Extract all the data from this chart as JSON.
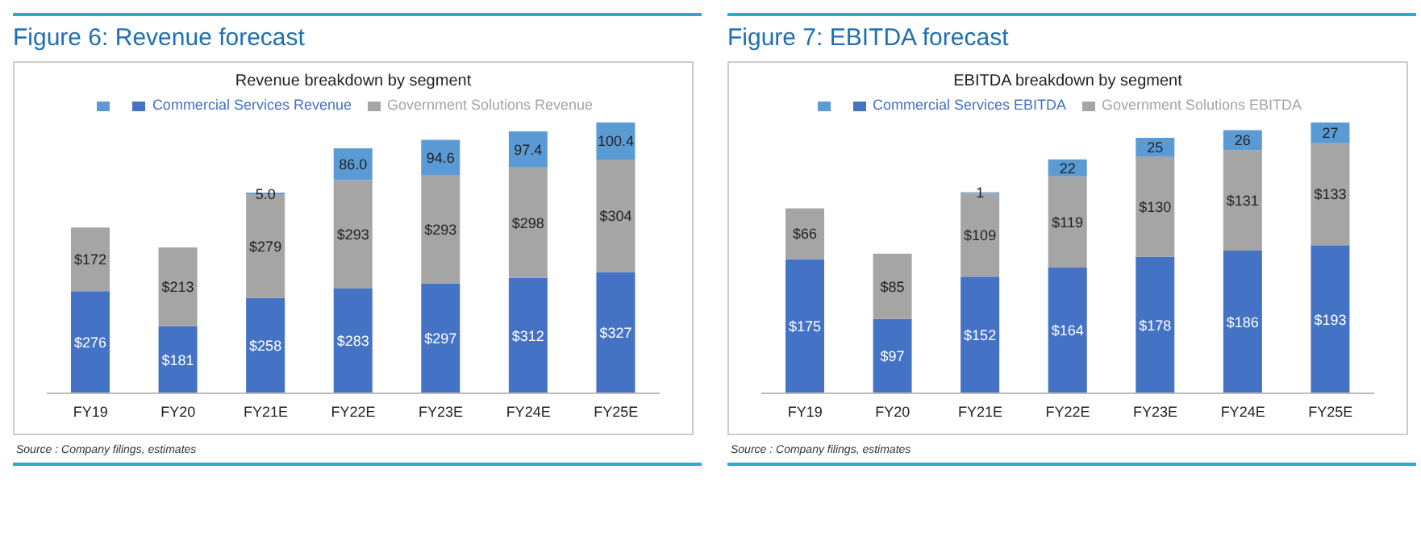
{
  "chart_data": [
    {
      "type": "bar",
      "stacked": true,
      "title": "Figure 6: Revenue forecast",
      "subtitle": "Revenue breakdown by segment",
      "categories": [
        "FY19",
        "FY20",
        "FY21E",
        "FY22E",
        "FY23E",
        "FY24E",
        "FY25E"
      ],
      "legend": "top",
      "annotations": [
        "Source : Company filings, estimates"
      ],
      "series": [
        {
          "name": "Commercial Services Revenue",
          "color": "#4472c4",
          "values": [
            276,
            181,
            258,
            283,
            297,
            312,
            327
          ],
          "value_labels": [
            "$276",
            "$181",
            "$258",
            "$283",
            "$297",
            "$312",
            "$327"
          ]
        },
        {
          "name": "Government Solutions Revenue",
          "color": "#a5a5a5",
          "values": [
            172,
            213,
            279,
            293,
            293,
            298,
            304
          ],
          "value_labels": [
            "$172",
            "$213",
            "$279",
            "$293",
            "$293",
            "$298",
            "$304"
          ]
        },
        {
          "color": "#5b9bd5",
          "values": [
            null,
            null,
            5.0,
            86.0,
            94.6,
            97.4,
            100.4
          ],
          "value_labels": [
            null,
            null,
            "5.0",
            "86.0",
            "94.6",
            "97.4",
            "100.4"
          ]
        }
      ]
    },
    {
      "type": "bar",
      "stacked": true,
      "title": "Figure 7: EBITDA forecast",
      "subtitle": "EBITDA breakdown by segment",
      "categories": [
        "FY19",
        "FY20",
        "FY21E",
        "FY22E",
        "FY23E",
        "FY24E",
        "FY25E"
      ],
      "legend": "top",
      "annotations": [
        "Source : Company filings, estimates"
      ],
      "series": [
        {
          "name": "Commercial Services EBITDA",
          "color": "#4472c4",
          "values": [
            175,
            97,
            152,
            164,
            178,
            186,
            193
          ],
          "value_labels": [
            "$175",
            "$97",
            "$152",
            "$164",
            "$178",
            "$186",
            "$193"
          ]
        },
        {
          "name": "Government Solutions EBITDA",
          "color": "#a5a5a5",
          "values": [
            66,
            85,
            109,
            119,
            130,
            131,
            133
          ],
          "value_labels": [
            "$66",
            "$85",
            "$109",
            "$119",
            "$130",
            "$131",
            "$133"
          ]
        },
        {
          "color": "#5b9bd5",
          "values": [
            null,
            null,
            1,
            22,
            25,
            26,
            27
          ],
          "value_labels": [
            null,
            null,
            "1",
            "22",
            "25",
            "26",
            "27"
          ]
        }
      ]
    }
  ]
}
